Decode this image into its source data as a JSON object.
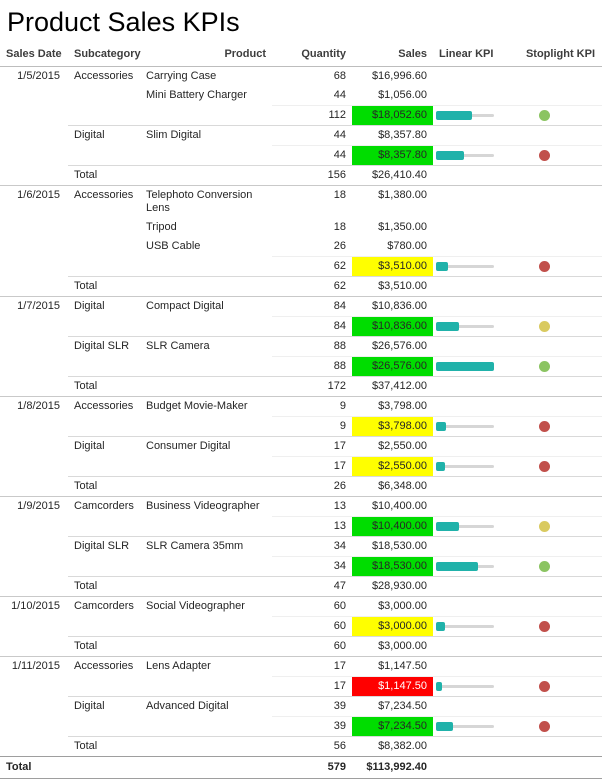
{
  "title": "Product Sales KPIs",
  "header": {
    "sales_date": "Sales Date",
    "subcategory": "Subcategory",
    "product": "Product",
    "quantity": "Quantity",
    "sales": "Sales",
    "linear_kpi": "Linear KPI",
    "stoplight_kpi": "Stoplight KPI"
  },
  "colors": {
    "status_green": "#00dd00",
    "status_yellow": "#ffff00",
    "status_red": "#ff0000",
    "status_red_text": "#ffffff",
    "gauge_fill": "#20b2aa",
    "gauge_track": "#d6d6d6",
    "dot_green": "#8bc462",
    "dot_yellow": "#d9ca60",
    "dot_red": "#c1504b"
  },
  "groups": [
    {
      "date": "1/5/2015",
      "blocks": [
        {
          "subcategory": "Accessories",
          "products": [
            {
              "name": "Carrying Case",
              "quantity": "68",
              "sales": "$16,996.60"
            },
            {
              "name": "Mini Battery Charger",
              "quantity": "44",
              "sales": "$1,056.00"
            }
          ],
          "subtotal": {
            "quantity": "112",
            "sales": "$18,052.60",
            "status": "green",
            "gauge_pct": 62,
            "dot": "green"
          }
        },
        {
          "subcategory": "Digital",
          "products": [
            {
              "name": "Slim Digital",
              "quantity": "44",
              "sales": "$8,357.80"
            }
          ],
          "subtotal": {
            "quantity": "44",
            "sales": "$8,357.80",
            "status": "green",
            "gauge_pct": 48,
            "dot": "red"
          }
        }
      ],
      "total": {
        "label": "Total",
        "quantity": "156",
        "sales": "$26,410.40"
      }
    },
    {
      "date": "1/6/2015",
      "blocks": [
        {
          "subcategory": "Accessories",
          "products": [
            {
              "name": "Telephoto Conversion Lens",
              "quantity": "18",
              "sales": "$1,380.00"
            },
            {
              "name": "Tripod",
              "quantity": "18",
              "sales": "$1,350.00"
            },
            {
              "name": "USB Cable",
              "quantity": "26",
              "sales": "$780.00"
            }
          ],
          "subtotal": {
            "quantity": "62",
            "sales": "$3,510.00",
            "status": "yellow",
            "gauge_pct": 20,
            "dot": "red"
          }
        }
      ],
      "total": {
        "label": "Total",
        "quantity": "62",
        "sales": "$3,510.00"
      }
    },
    {
      "date": "1/7/2015",
      "blocks": [
        {
          "subcategory": "Digital",
          "products": [
            {
              "name": "Compact Digital",
              "quantity": "84",
              "sales": "$10,836.00"
            }
          ],
          "subtotal": {
            "quantity": "84",
            "sales": "$10,836.00",
            "status": "green",
            "gauge_pct": 40,
            "dot": "yellow"
          }
        },
        {
          "subcategory": "Digital SLR",
          "products": [
            {
              "name": "SLR Camera",
              "quantity": "88",
              "sales": "$26,576.00"
            }
          ],
          "subtotal": {
            "quantity": "88",
            "sales": "$26,576.00",
            "status": "green",
            "gauge_pct": 100,
            "dot": "green"
          }
        }
      ],
      "total": {
        "label": "Total",
        "quantity": "172",
        "sales": "$37,412.00"
      }
    },
    {
      "date": "1/8/2015",
      "blocks": [
        {
          "subcategory": "Accessories",
          "products": [
            {
              "name": "Budget Movie-Maker",
              "quantity": "9",
              "sales": "$3,798.00"
            }
          ],
          "subtotal": {
            "quantity": "9",
            "sales": "$3,798.00",
            "status": "yellow",
            "gauge_pct": 18,
            "dot": "red"
          }
        },
        {
          "subcategory": "Digital",
          "products": [
            {
              "name": "Consumer Digital",
              "quantity": "17",
              "sales": "$2,550.00"
            }
          ],
          "subtotal": {
            "quantity": "17",
            "sales": "$2,550.00",
            "status": "yellow",
            "gauge_pct": 15,
            "dot": "red"
          }
        }
      ],
      "total": {
        "label": "Total",
        "quantity": "26",
        "sales": "$6,348.00"
      }
    },
    {
      "date": "1/9/2015",
      "blocks": [
        {
          "subcategory": "Camcorders",
          "products": [
            {
              "name": "Business Videographer",
              "quantity": "13",
              "sales": "$10,400.00"
            }
          ],
          "subtotal": {
            "quantity": "13",
            "sales": "$10,400.00",
            "status": "green",
            "gauge_pct": 40,
            "dot": "yellow"
          }
        },
        {
          "subcategory": "Digital SLR",
          "products": [
            {
              "name": "SLR Camera 35mm",
              "quantity": "34",
              "sales": "$18,530.00"
            }
          ],
          "subtotal": {
            "quantity": "34",
            "sales": "$18,530.00",
            "status": "green",
            "gauge_pct": 72,
            "dot": "green"
          }
        }
      ],
      "total": {
        "label": "Total",
        "quantity": "47",
        "sales": "$28,930.00"
      }
    },
    {
      "date": "1/10/2015",
      "blocks": [
        {
          "subcategory": "Camcorders",
          "products": [
            {
              "name": "Social Videographer",
              "quantity": "60",
              "sales": "$3,000.00"
            }
          ],
          "subtotal": {
            "quantity": "60",
            "sales": "$3,000.00",
            "status": "yellow",
            "gauge_pct": 16,
            "dot": "red"
          }
        }
      ],
      "total": {
        "label": "Total",
        "quantity": "60",
        "sales": "$3,000.00"
      }
    },
    {
      "date": "1/11/2015",
      "blocks": [
        {
          "subcategory": "Accessories",
          "products": [
            {
              "name": "Lens Adapter",
              "quantity": "17",
              "sales": "$1,147.50"
            }
          ],
          "subtotal": {
            "quantity": "17",
            "sales": "$1,147.50",
            "status": "red",
            "gauge_pct": 10,
            "dot": "red"
          }
        },
        {
          "subcategory": "Digital",
          "products": [
            {
              "name": "Advanced Digital",
              "quantity": "39",
              "sales": "$7,234.50"
            }
          ],
          "subtotal": {
            "quantity": "39",
            "sales": "$7,234.50",
            "status": "green",
            "gauge_pct": 30,
            "dot": "red"
          }
        }
      ],
      "total": {
        "label": "Total",
        "quantity": "56",
        "sales": "$8,382.00"
      }
    }
  ],
  "grand_total": {
    "label": "Total",
    "quantity": "579",
    "sales": "$113,992.40"
  }
}
